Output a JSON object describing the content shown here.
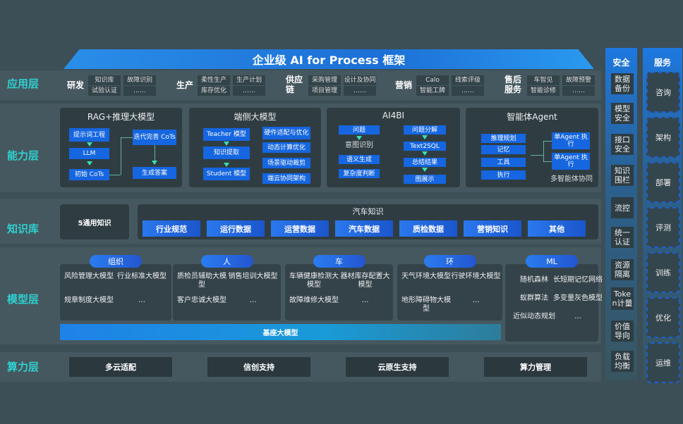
{
  "title": "企业级 AI for Process 框架",
  "layers": {
    "app": "应用层",
    "capability": "能力层",
    "knowledge": "知识库",
    "model": "模型层",
    "compute": "算力层"
  },
  "application": [
    {
      "name": "研发",
      "items": [
        "知识库",
        "故障识别",
        "试验认证",
        "……"
      ]
    },
    {
      "name": "生产",
      "items": [
        "柔性生产",
        "生产计划",
        "库存优化",
        "……"
      ]
    },
    {
      "name": "供应链",
      "items": [
        "采购管理",
        "设计及协同",
        "项目管理",
        "……"
      ]
    },
    {
      "name": "营销",
      "items": [
        "Calo",
        "线索评级",
        "智能工牌",
        "……"
      ]
    },
    {
      "name": "售后服务",
      "items": [
        "车智见",
        "故障预警",
        "智能诊修",
        "……"
      ]
    }
  ],
  "capability": {
    "rag": {
      "title": "RAG+推理大模型",
      "left": [
        "提示词工程",
        "LLM",
        "初始 CoTs"
      ],
      "right": [
        "迭代完善 CoTs",
        "生成答案"
      ]
    },
    "edge": {
      "title": "端侧大模型",
      "left": [
        "Teacher 模型",
        "知识提取",
        "Student 模型"
      ],
      "right": [
        "硬件适配与优化",
        "动态计算优化",
        "场景驱动裁剪",
        "端云协同架构"
      ]
    },
    "ai4bi": {
      "title": "AI4BI",
      "left": [
        "问题",
        "意图识别",
        "语义生成",
        "复杂度判断"
      ],
      "right": [
        "问题分解",
        "Text2SQL",
        "总结结果",
        "图展示"
      ]
    },
    "agent": {
      "title": "智能体Agent",
      "left": [
        "推理规划",
        "记忆",
        "工具",
        "执行"
      ],
      "right": [
        "单Agent 执行",
        "单Agent 执行"
      ],
      "footer": "多智能体协同"
    }
  },
  "knowledge": {
    "general": "5通用知识",
    "auto_title": "汽车知识",
    "items": [
      "行业规范",
      "运行数据",
      "运营数据",
      "汽车数据",
      "质检数据",
      "营销知识",
      "其他"
    ]
  },
  "models": [
    {
      "name": "组织",
      "items": [
        "风险管理大模型",
        "行业标准大模型",
        "规章制度大模型",
        "…"
      ]
    },
    {
      "name": "人",
      "items": [
        "质检员辅助大模型",
        "销售培训大模型",
        "客户忠诚大模型",
        "…"
      ]
    },
    {
      "name": "车",
      "items": [
        "车辆健康检测大模型",
        "器材库存配置大模型",
        "故障维修大模型",
        "…"
      ]
    },
    {
      "name": "环",
      "items": [
        "天气环境大模型",
        "行驶环境大模型",
        "地形障碍物大模型",
        "…"
      ]
    },
    {
      "name": "ML",
      "items": [
        "随机森林",
        "长短期记忆网络",
        "蚁群算法",
        "多变量灰色模型",
        "近似动态规划",
        "…"
      ]
    }
  ],
  "base_model": "基座大模型",
  "compute": [
    "多云适配",
    "信创支持",
    "云原生支持",
    "算力管理"
  ],
  "security": {
    "title": "安全",
    "items": [
      "数据备份",
      "模型安全",
      "接口安全",
      "知识围栏",
      "流控",
      "统一认证",
      "资源隔离",
      "Token计量",
      "价值导向",
      "负载均衡"
    ]
  },
  "services": {
    "title": "服务",
    "items": [
      "咨询",
      "架构",
      "部署",
      "评测",
      "训练",
      "优化",
      "运维"
    ]
  }
}
